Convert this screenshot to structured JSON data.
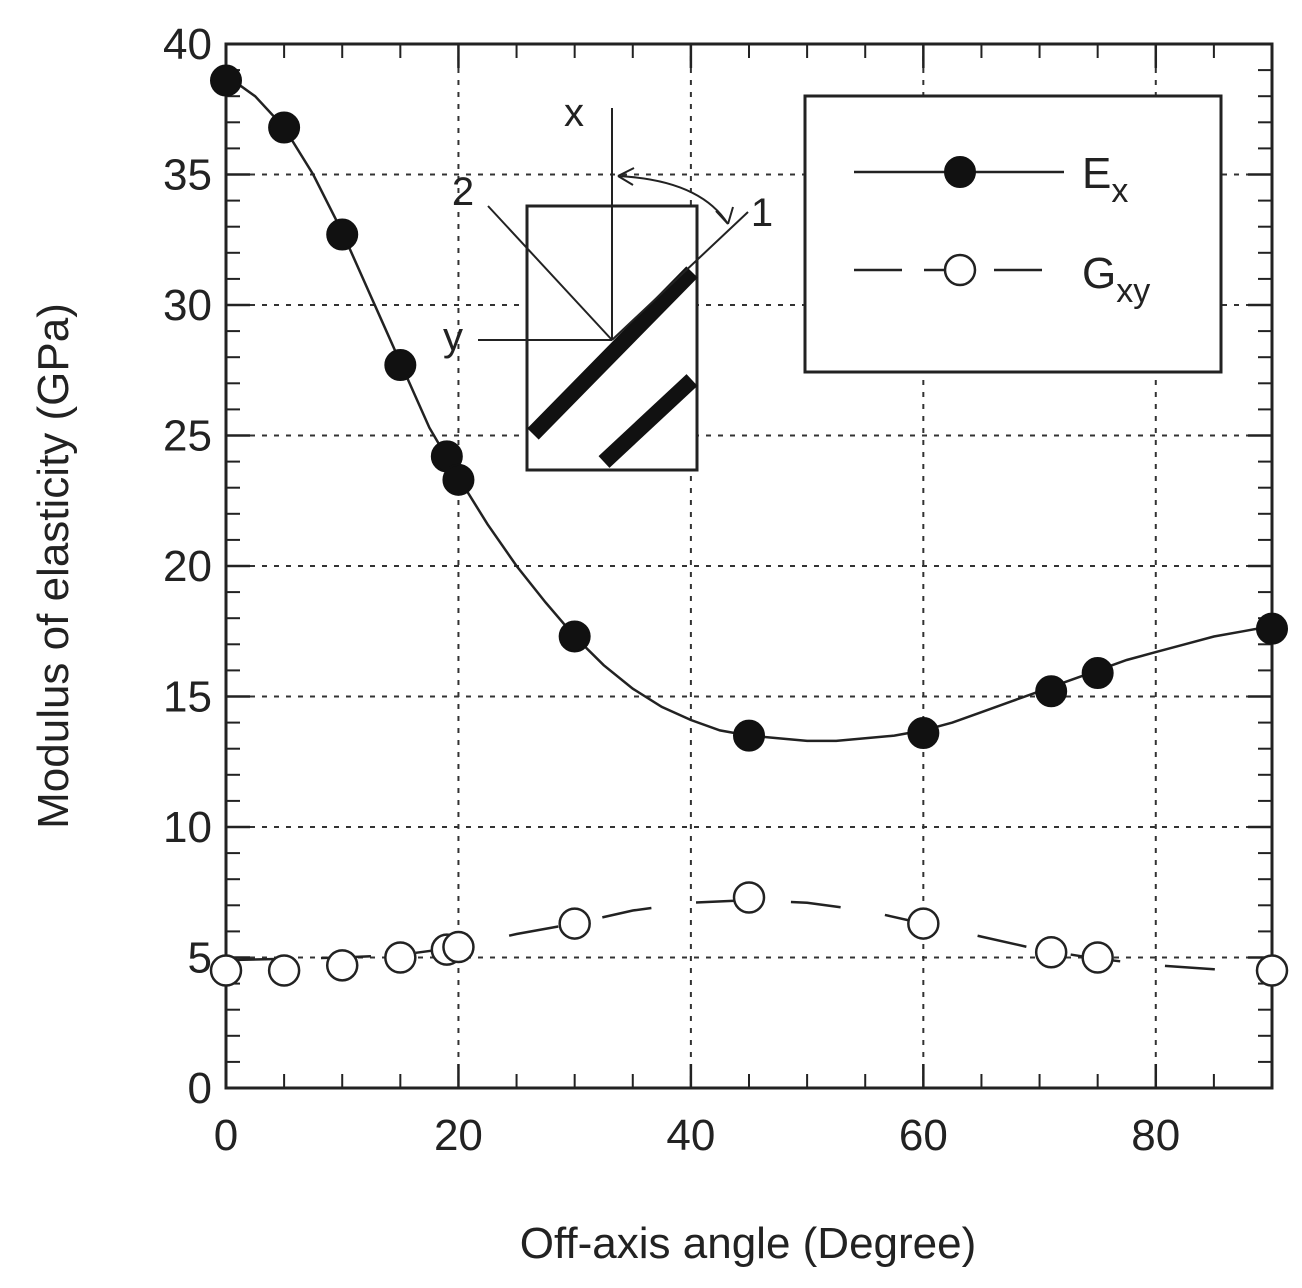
{
  "chart_data": {
    "type": "line",
    "title": "",
    "xlabel": "Off-axis angle (Degree)",
    "ylabel": "Modulus of elasticity (GPa)",
    "xlim": [
      0,
      90
    ],
    "ylim": [
      0,
      40
    ],
    "xticks": [
      0,
      20,
      40,
      60,
      80
    ],
    "yticks": [
      0,
      5,
      10,
      15,
      20,
      25,
      30,
      35,
      40
    ],
    "xtick_labels": [
      "0",
      "20",
      "40",
      "60",
      "80"
    ],
    "ytick_labels": [
      "0",
      "5",
      "10",
      "15",
      "20",
      "25",
      "30",
      "35",
      "40"
    ],
    "grid": true,
    "legend": "top-right",
    "series": [
      {
        "name": "Ex",
        "label_main": "E",
        "label_sub": "x",
        "marker": "filled-circle",
        "line": "solid",
        "points": [
          [
            0,
            38.6
          ],
          [
            5,
            36.8
          ],
          [
            10,
            32.7
          ],
          [
            15,
            27.7
          ],
          [
            19,
            24.2
          ],
          [
            20,
            23.3
          ],
          [
            30,
            17.3
          ],
          [
            45,
            13.5
          ],
          [
            60,
            13.6
          ],
          [
            71,
            15.2
          ],
          [
            75,
            15.9
          ],
          [
            90,
            17.6
          ]
        ],
        "fit": [
          [
            0,
            38.8
          ],
          [
            2.5,
            38.0
          ],
          [
            5,
            36.8
          ],
          [
            7.5,
            35.0
          ],
          [
            10,
            32.8
          ],
          [
            12.5,
            30.3
          ],
          [
            15,
            27.8
          ],
          [
            17.5,
            25.3
          ],
          [
            20,
            23.4
          ],
          [
            22.5,
            21.6
          ],
          [
            25,
            20.0
          ],
          [
            27.5,
            18.6
          ],
          [
            30,
            17.3
          ],
          [
            32.5,
            16.2
          ],
          [
            35,
            15.3
          ],
          [
            37.5,
            14.6
          ],
          [
            40,
            14.1
          ],
          [
            42.5,
            13.7
          ],
          [
            45,
            13.5
          ],
          [
            47.5,
            13.4
          ],
          [
            50,
            13.3
          ],
          [
            52.5,
            13.3
          ],
          [
            55,
            13.4
          ],
          [
            57.5,
            13.5
          ],
          [
            60,
            13.7
          ],
          [
            62.5,
            14.0
          ],
          [
            65,
            14.4
          ],
          [
            67.5,
            14.8
          ],
          [
            70,
            15.2
          ],
          [
            72.5,
            15.6
          ],
          [
            75,
            16.0
          ],
          [
            77.5,
            16.4
          ],
          [
            80,
            16.7
          ],
          [
            82.5,
            17.0
          ],
          [
            85,
            17.3
          ],
          [
            87.5,
            17.5
          ],
          [
            90,
            17.7
          ]
        ]
      },
      {
        "name": "Gxy",
        "label_main": "G",
        "label_sub": "xy",
        "marker": "open-circle",
        "line": "dashed",
        "points": [
          [
            0,
            4.5
          ],
          [
            5,
            4.5
          ],
          [
            10,
            4.7
          ],
          [
            15,
            5.0
          ],
          [
            19,
            5.3
          ],
          [
            20,
            5.4
          ],
          [
            30,
            6.3
          ],
          [
            45,
            7.3
          ],
          [
            60,
            6.3
          ],
          [
            71,
            5.2
          ],
          [
            75,
            5.0
          ],
          [
            90,
            4.5
          ]
        ],
        "fit": [
          [
            0,
            4.9
          ],
          [
            5,
            4.95
          ],
          [
            10,
            5.0
          ],
          [
            15,
            5.1
          ],
          [
            20,
            5.4
          ],
          [
            25,
            5.9
          ],
          [
            30,
            6.3
          ],
          [
            35,
            6.8
          ],
          [
            40,
            7.1
          ],
          [
            45,
            7.2
          ],
          [
            50,
            7.1
          ],
          [
            55,
            6.8
          ],
          [
            60,
            6.3
          ],
          [
            65,
            5.8
          ],
          [
            70,
            5.3
          ],
          [
            75,
            4.95
          ],
          [
            80,
            4.7
          ],
          [
            85,
            4.55
          ],
          [
            90,
            4.5
          ]
        ]
      }
    ],
    "inset": {
      "labels": [
        "x",
        "y",
        "1",
        "2"
      ]
    }
  }
}
